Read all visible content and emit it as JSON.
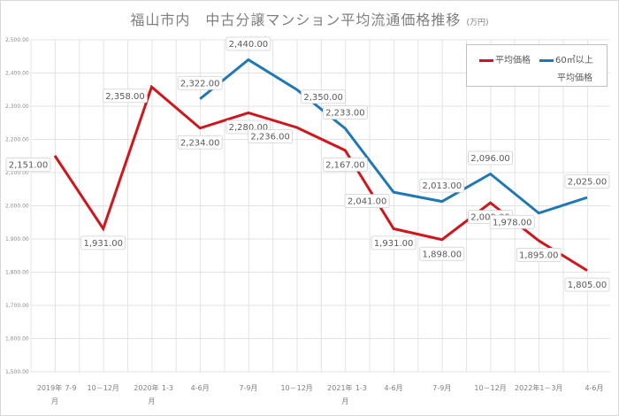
{
  "title": {
    "main": "福山市内　中古分譲マンション平均流通価格推移",
    "unit": "(万円)"
  },
  "chart_data": {
    "type": "line",
    "title": "福山市内　中古分譲マンション平均流通価格推移 (万円)",
    "xlabel": "",
    "ylabel": "",
    "ylim": [
      1500,
      2500
    ],
    "ytick_step": 100,
    "yticks": [
      "1,500.00",
      "1,600.00",
      "1,700.00",
      "1,800.00",
      "1,900.00",
      "2,000.00",
      "2,100.00",
      "2,200.00",
      "2,300.00",
      "2,400.00",
      "2,500.00"
    ],
    "grid": true,
    "legend_position": "top-right",
    "categories": [
      [
        "2019年",
        "7-9",
        "月"
      ],
      [
        "10－12月"
      ],
      [
        "2020年",
        "1-3",
        "月"
      ],
      [
        "4-6月"
      ],
      [
        "7-9月"
      ],
      [
        "10－12月"
      ],
      [
        "2021年",
        "1-3",
        "月"
      ],
      [
        "4-6月"
      ],
      [
        "7-9月"
      ],
      [
        "10－12月"
      ],
      [
        "2022年1－3月"
      ],
      [
        "4-6月"
      ]
    ],
    "series": [
      {
        "name": "平均価格",
        "color": "#d0151c",
        "values": [
          2151,
          1931,
          2358,
          2234,
          2280,
          2236,
          2167,
          1931,
          1898,
          2009,
          1895,
          1805
        ],
        "labels": [
          "2,151.00",
          "1,931.00",
          "2,358.00",
          "2,234.00",
          "2,280.00",
          "2,236.00",
          "2,167.00",
          "1,931.00",
          "1,898.00",
          "2,009.00",
          "1,895.00",
          "1,805.00"
        ],
        "label_side": [
          "left",
          "below",
          "left",
          "below",
          "below",
          "left",
          "below",
          "below",
          "below",
          "below",
          "below",
          "below"
        ]
      },
      {
        "name": "60㎡以上平均価格",
        "color": "#1f77b4",
        "values": [
          null,
          null,
          null,
          2322,
          2440,
          2350,
          2233,
          2041,
          2013,
          2096,
          1978,
          2025
        ],
        "labels": [
          null,
          null,
          null,
          "2,322.00",
          "2,440.00",
          "2,350.00",
          "2,233.00",
          "2,041.00",
          "2,013.00",
          "2,096.00",
          "1,978.00",
          "2,025.00"
        ],
        "label_side": [
          null,
          null,
          null,
          "above",
          "above",
          "right",
          "above",
          "left",
          "above",
          "above",
          "left",
          "above"
        ]
      }
    ]
  },
  "legend": {
    "items": [
      {
        "label": "平均価格",
        "color": "#d0151c"
      },
      {
        "label_line1": "60㎡以上",
        "label_line2": "平均価格",
        "color": "#1f77b4"
      }
    ]
  }
}
